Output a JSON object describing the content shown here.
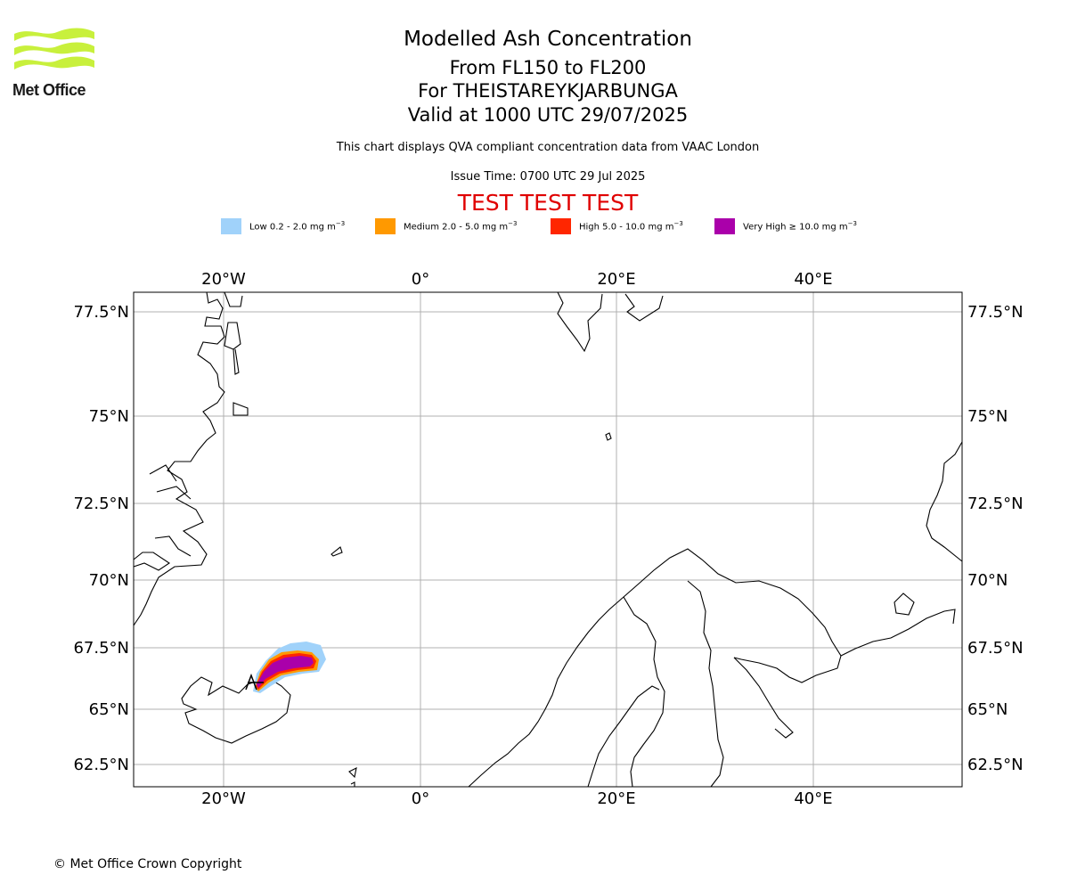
{
  "header": {
    "logo_text": "Met Office",
    "title": "Modelled Ash Concentration",
    "level": "From FL150 to FL200",
    "volcano": "For THEISTAREYKJARBUNGA",
    "valid": "Valid at 1000 UTC 29/07/2025",
    "note": "This chart displays QVA compliant concentration data from VAAC London",
    "issue": "Issue Time: 0700 UTC 29 Jul 2025",
    "test_banner": "TEST TEST TEST"
  },
  "legend": [
    {
      "label": "Low 0.2 - 2.0 mg m",
      "exp": "−3",
      "color": "#a0d2fa"
    },
    {
      "label": "Medium 2.0 - 5.0 mg m",
      "exp": "−3",
      "color": "#ff9900"
    },
    {
      "label": "High 5.0 - 10.0 mg m",
      "exp": "−3",
      "color": "#ff2600"
    },
    {
      "label": "Very High  ≥  10.0 mg m",
      "exp": "−3",
      "color": "#aa00aa"
    }
  ],
  "map": {
    "lon_ticks": [
      "20°W",
      "0°",
      "20°E",
      "40°E"
    ],
    "lat_ticks": [
      "77.5°N",
      "75°N",
      "72.5°N",
      "70°N",
      "67.5°N",
      "65°N",
      "62.5°N"
    ],
    "grid": true,
    "grid_color": "#b0b0b0"
  },
  "footer": {
    "copyright": "© Met Office Crown Copyright"
  }
}
